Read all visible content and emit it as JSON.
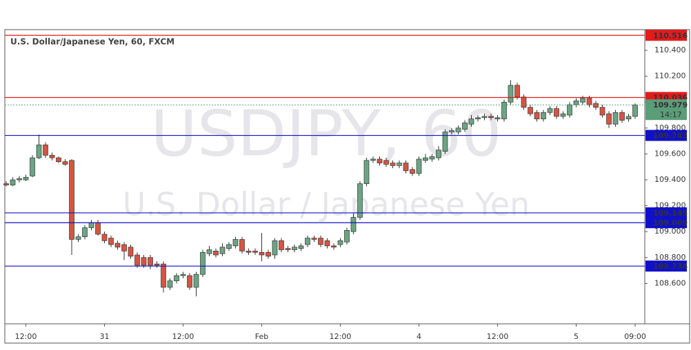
{
  "chart_data": {
    "type": "candlestick",
    "title": "U.S. Dollar/Japanese Yen, 60, FXCM",
    "watermark": "USDJPY, 60",
    "watermark_subtitle": "U.S. Dollar / Japanese Yen",
    "up_color": "#6ba583",
    "down_color": "#d75442",
    "x": [
      null,
      null,
      null,
      "12:00",
      null,
      null,
      null,
      null,
      null,
      null,
      null,
      null,
      null,
      null,
      null,
      "31",
      null,
      null,
      null,
      null,
      null,
      null,
      null,
      null,
      null,
      null,
      null,
      "12:00",
      null,
      null,
      null,
      null,
      null,
      null,
      null,
      null,
      null,
      null,
      null,
      "Feb",
      null,
      null,
      null,
      null,
      null,
      null,
      null,
      null,
      null,
      null,
      null,
      "12:00",
      null,
      null,
      null,
      null,
      null,
      null,
      null,
      null,
      null,
      null,
      null,
      "4",
      null,
      null,
      null,
      null,
      null,
      null,
      null,
      null,
      null,
      null,
      null,
      "12:00",
      null,
      null,
      null,
      null,
      null,
      null,
      null,
      null,
      null,
      null,
      null,
      "5",
      null,
      null,
      null,
      null,
      null,
      null,
      null,
      null,
      "09:00"
    ],
    "open": [
      109.37,
      109.36,
      109.4,
      109.4,
      109.43,
      109.57,
      109.67,
      109.59,
      109.57,
      109.54,
      109.55,
      108.94,
      108.96,
      109.03,
      109.07,
      108.98,
      108.95,
      108.91,
      108.9,
      108.88,
      108.82,
      108.8,
      108.8,
      108.75,
      108.75,
      108.57,
      108.62,
      108.66,
      108.66,
      108.57,
      108.67,
      108.83,
      108.85,
      108.83,
      108.87,
      108.89,
      108.94,
      108.85,
      108.85,
      108.84,
      108.84,
      108.82,
      108.93,
      108.87,
      108.86,
      108.87,
      108.9,
      108.95,
      108.95,
      108.93,
      108.89,
      108.9,
      108.92,
      109.0,
      109.11,
      109.37,
      109.55,
      109.56,
      109.55,
      109.53,
      109.51,
      109.53,
      109.48,
      109.45,
      109.55,
      109.56,
      109.57,
      109.62,
      109.77,
      109.77,
      109.79,
      109.83,
      109.87,
      109.88,
      109.89,
      109.87,
      109.87,
      110.0,
      110.13,
      110.04,
      109.96,
      109.92,
      109.87,
      109.92,
      109.95,
      109.89,
      109.9,
      109.98,
      110.0,
      110.03,
      109.99,
      109.96,
      109.91,
      109.83,
      109.92,
      109.87,
      109.89
    ],
    "high": [
      109.39,
      109.42,
      109.43,
      109.44,
      109.59,
      109.75,
      109.69,
      109.61,
      109.58,
      109.56,
      109.56,
      108.98,
      109.05,
      109.09,
      109.09,
      109.0,
      108.97,
      108.93,
      108.92,
      108.9,
      108.84,
      108.82,
      108.82,
      108.77,
      108.77,
      108.64,
      108.68,
      108.69,
      108.68,
      108.69,
      108.86,
      108.89,
      108.87,
      108.91,
      108.92,
      108.96,
      108.96,
      108.87,
      108.87,
      108.99,
      108.86,
      108.95,
      108.95,
      108.89,
      108.9,
      108.91,
      108.97,
      108.97,
      108.97,
      108.95,
      108.91,
      108.95,
      109.03,
      109.14,
      109.39,
      109.57,
      109.58,
      109.58,
      109.57,
      109.55,
      109.55,
      109.55,
      109.5,
      109.58,
      109.6,
      109.6,
      109.66,
      109.79,
      109.8,
      109.82,
      109.86,
      109.9,
      109.9,
      109.91,
      109.91,
      109.9,
      110.02,
      110.17,
      110.15,
      110.06,
      109.98,
      109.94,
      109.94,
      109.97,
      109.97,
      109.93,
      110.0,
      110.03,
      110.05,
      110.05,
      110.01,
      109.98,
      109.93,
      109.94,
      109.94,
      109.91,
      109.99
    ],
    "low": [
      109.35,
      109.35,
      109.38,
      109.39,
      109.42,
      109.56,
      109.57,
      109.55,
      109.53,
      109.51,
      108.82,
      108.92,
      108.94,
      109.01,
      108.97,
      108.91,
      108.88,
      108.86,
      108.78,
      108.79,
      108.72,
      108.72,
      108.71,
      108.72,
      108.53,
      108.55,
      108.6,
      108.64,
      108.55,
      108.5,
      108.65,
      108.81,
      108.8,
      108.81,
      108.85,
      108.87,
      108.83,
      108.82,
      108.82,
      108.77,
      108.79,
      108.79,
      108.84,
      108.84,
      108.84,
      108.85,
      108.88,
      108.92,
      108.88,
      108.87,
      108.86,
      108.88,
      108.9,
      108.98,
      109.09,
      109.35,
      109.53,
      109.51,
      109.5,
      109.49,
      109.49,
      109.45,
      109.43,
      109.43,
      109.53,
      109.54,
      109.55,
      109.6,
      109.75,
      109.75,
      109.77,
      109.81,
      109.85,
      109.86,
      109.86,
      109.85,
      109.85,
      109.98,
      110.02,
      109.94,
      109.89,
      109.85,
      109.85,
      109.9,
      109.87,
      109.87,
      109.88,
      109.96,
      109.98,
      109.96,
      109.94,
      109.88,
      109.8,
      109.81,
      109.84,
      109.85,
      109.87
    ],
    "close": [
      109.36,
      109.4,
      109.41,
      109.42,
      109.57,
      109.67,
      109.59,
      109.57,
      109.54,
      109.52,
      108.94,
      108.96,
      109.03,
      109.07,
      108.98,
      108.93,
      108.9,
      108.88,
      108.85,
      108.81,
      108.74,
      108.74,
      108.74,
      108.74,
      108.57,
      108.62,
      108.66,
      108.67,
      108.57,
      108.67,
      108.84,
      108.86,
      108.82,
      108.88,
      108.9,
      108.94,
      108.85,
      108.84,
      108.84,
      108.82,
      108.81,
      108.93,
      108.86,
      108.86,
      108.88,
      108.89,
      108.95,
      108.94,
      108.9,
      108.89,
      108.88,
      108.93,
      109.01,
      109.11,
      109.37,
      109.55,
      109.56,
      109.53,
      109.52,
      109.51,
      109.53,
      109.47,
      109.45,
      109.56,
      109.57,
      109.58,
      109.63,
      109.77,
      109.78,
      109.8,
      109.84,
      109.87,
      109.88,
      109.89,
      109.88,
      109.88,
      110.0,
      110.13,
      110.04,
      109.96,
      109.91,
      109.87,
      109.92,
      109.95,
      109.89,
      109.91,
      109.98,
      110.01,
      110.03,
      109.98,
      109.96,
      109.9,
      109.83,
      109.92,
      109.86,
      109.89,
      109.979
    ],
    "ylim": [
      108.288,
      110.56
    ],
    "yticks": [
      {
        "value": 108.6,
        "label": "108.600"
      },
      {
        "value": 108.8,
        "label": "108.800"
      },
      {
        "value": 109,
        "label": "109.000"
      },
      {
        "value": 109.2,
        "label": "109.200"
      },
      {
        "value": 109.4,
        "label": "109.400"
      },
      {
        "value": 109.6,
        "label": "109.600"
      },
      {
        "value": 109.8,
        "label": "109.800"
      },
      {
        "value": 110,
        "label": "110.000"
      },
      {
        "value": 110.2,
        "label": "110.200"
      },
      {
        "value": 110.4,
        "label": "110.400"
      }
    ],
    "grid": false,
    "levels": [
      {
        "value": 110.516,
        "color": "#e31b1b"
      },
      {
        "value": 110.036,
        "color": "#e31b1b"
      },
      {
        "value": 109.743,
        "color": "#1010c8"
      },
      {
        "value": 109.145,
        "color": "#1010c8"
      },
      {
        "value": 109.069,
        "color": "#1010c8"
      },
      {
        "value": 108.734,
        "color": "#1010c8"
      }
    ],
    "last_price": {
      "value": 109.979,
      "color": "#5b9c79",
      "countdown": "14:17"
    }
  }
}
